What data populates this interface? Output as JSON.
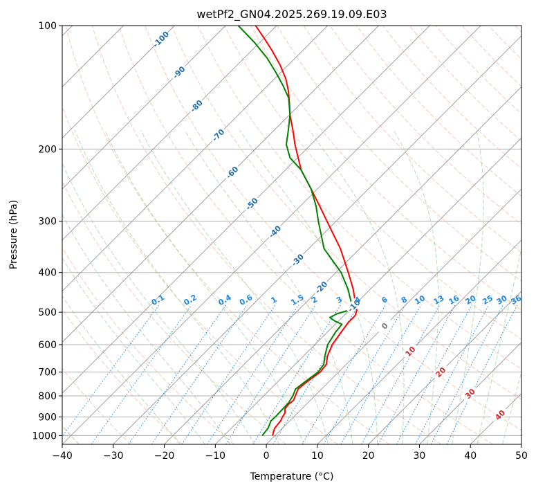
{
  "chart_data": {
    "type": "line",
    "chart_kind": "skew-t log-p diagram",
    "title": "wetPf2_GN04.2025.269.19.09.E03",
    "xlabel": "Temperature (°C)",
    "ylabel": "Pressure (hPa)",
    "xlim": [
      -40,
      50
    ],
    "ylim": [
      1050,
      100
    ],
    "y_scale": "log",
    "grid": true,
    "x_ticks": [
      -40,
      -30,
      -20,
      -10,
      0,
      10,
      20,
      30,
      40,
      50
    ],
    "y_ticks": [
      1000,
      900,
      800,
      700,
      600,
      500,
      400,
      300,
      200,
      100
    ],
    "isotherms": {
      "color": "#999999",
      "labels": [
        {
          "text": "-100",
          "p": 108
        },
        {
          "text": "-90",
          "p": 130
        },
        {
          "text": "-80",
          "p": 157
        },
        {
          "text": "-70",
          "p": 185
        },
        {
          "text": "-60",
          "p": 228
        },
        {
          "text": "-50",
          "p": 272
        },
        {
          "text": "-40",
          "p": 318
        },
        {
          "text": "-30",
          "p": 373
        },
        {
          "text": "-20",
          "p": 435
        },
        {
          "text": "-10",
          "p": 482
        },
        {
          "text": "0",
          "p": 540
        },
        {
          "text": "10",
          "p": 623
        },
        {
          "text": "20",
          "p": 700
        },
        {
          "text": "30",
          "p": 790
        },
        {
          "text": "40",
          "p": 890
        }
      ]
    },
    "mixing_ratios": {
      "color": "#1e88e5",
      "label_pressure": 480,
      "values": [
        {
          "label": "0.1",
          "value": 0.1
        },
        {
          "label": "0.2",
          "value": 0.2
        },
        {
          "label": "0.4",
          "value": 0.4
        },
        {
          "label": "0.6",
          "value": 0.6
        },
        {
          "label": "1",
          "value": 1
        },
        {
          "label": "1.5",
          "value": 1.5
        },
        {
          "label": "2",
          "value": 2
        },
        {
          "label": "3",
          "value": 3
        },
        {
          "label": "4",
          "value": 4
        },
        {
          "label": "6",
          "value": 6
        },
        {
          "label": "8",
          "value": 8
        },
        {
          "label": "10",
          "value": 10
        },
        {
          "label": "13",
          "value": 13
        },
        {
          "label": "16",
          "value": 16
        },
        {
          "label": "20",
          "value": 20
        },
        {
          "label": "25",
          "value": 25
        },
        {
          "label": "30",
          "value": 30
        },
        {
          "label": "36",
          "value": 36
        }
      ]
    },
    "series": [
      {
        "name": "Temperature",
        "color": "#ff0000",
        "points": [
          {
            "p": 1000,
            "t": -0.5
          },
          {
            "p": 960,
            "t": -1.5
          },
          {
            "p": 920,
            "t": -1.8
          },
          {
            "p": 900,
            "t": -2.2
          },
          {
            "p": 880,
            "t": -2.5
          },
          {
            "p": 860,
            "t": -3.3
          },
          {
            "p": 840,
            "t": -3.5
          },
          {
            "p": 820,
            "t": -3.3
          },
          {
            "p": 800,
            "t": -3.8
          },
          {
            "p": 770,
            "t": -4.6
          },
          {
            "p": 740,
            "t": -4.3
          },
          {
            "p": 700,
            "t": -3.6
          },
          {
            "p": 670,
            "t": -3.9
          },
          {
            "p": 640,
            "t": -5.3
          },
          {
            "p": 600,
            "t": -6.6
          },
          {
            "p": 560,
            "t": -7.3
          },
          {
            "p": 530,
            "t": -7.8
          },
          {
            "p": 510,
            "t": -7.8
          },
          {
            "p": 495,
            "t": -8.5
          },
          {
            "p": 480,
            "t": -9.8
          },
          {
            "p": 460,
            "t": -11.5
          },
          {
            "p": 440,
            "t": -13.3
          },
          {
            "p": 400,
            "t": -17.6
          },
          {
            "p": 350,
            "t": -23.8
          },
          {
            "p": 300,
            "t": -31.8
          },
          {
            "p": 275,
            "t": -36.3
          },
          {
            "p": 250,
            "t": -41.3
          },
          {
            "p": 225,
            "t": -46.9
          },
          {
            "p": 210,
            "t": -49.9
          },
          {
            "p": 195,
            "t": -53.1
          },
          {
            "p": 180,
            "t": -56.3
          },
          {
            "p": 165,
            "t": -59.9
          },
          {
            "p": 155,
            "t": -62.2
          },
          {
            "p": 145,
            "t": -64.7
          },
          {
            "p": 135,
            "t": -67.7
          },
          {
            "p": 125,
            "t": -71.5
          },
          {
            "p": 115,
            "t": -76.0
          },
          {
            "p": 108,
            "t": -79.6
          },
          {
            "p": 100,
            "t": -84.1
          }
        ]
      },
      {
        "name": "Dewpoint",
        "color": "#008000",
        "points": [
          {
            "p": 1000,
            "t": -2.5
          },
          {
            "p": 960,
            "t": -2.8
          },
          {
            "p": 920,
            "t": -3.7
          },
          {
            "p": 900,
            "t": -3.6
          },
          {
            "p": 860,
            "t": -3.7
          },
          {
            "p": 830,
            "t": -3.8
          },
          {
            "p": 800,
            "t": -4.3
          },
          {
            "p": 770,
            "t": -5.1
          },
          {
            "p": 740,
            "t": -4.7
          },
          {
            "p": 700,
            "t": -4.0
          },
          {
            "p": 670,
            "t": -4.4
          },
          {
            "p": 640,
            "t": -5.8
          },
          {
            "p": 600,
            "t": -7.5
          },
          {
            "p": 560,
            "t": -8.4
          },
          {
            "p": 535,
            "t": -8.7
          },
          {
            "p": 525,
            "t": -10.8
          },
          {
            "p": 515,
            "t": -12.4
          },
          {
            "p": 505,
            "t": -11.8
          },
          {
            "p": 495,
            "t": -10.2
          },
          {
            "p": 480,
            "t": -10.5
          },
          {
            "p": 460,
            "t": -12.4
          },
          {
            "p": 440,
            "t": -14.3
          },
          {
            "p": 400,
            "t": -19.0
          },
          {
            "p": 350,
            "t": -27.0
          },
          {
            "p": 300,
            "t": -33.5
          },
          {
            "p": 275,
            "t": -37.0
          },
          {
            "p": 250,
            "t": -41.3
          },
          {
            "p": 225,
            "t": -46.9
          },
          {
            "p": 210,
            "t": -51.5
          },
          {
            "p": 195,
            "t": -54.8
          },
          {
            "p": 180,
            "t": -57.2
          },
          {
            "p": 165,
            "t": -59.9
          },
          {
            "p": 150,
            "t": -63.5
          },
          {
            "p": 140,
            "t": -67.0
          },
          {
            "p": 130,
            "t": -71.0
          },
          {
            "p": 120,
            "t": -75.5
          },
          {
            "p": 110,
            "t": -81.0
          },
          {
            "p": 100,
            "t": -87.5
          }
        ]
      }
    ]
  }
}
